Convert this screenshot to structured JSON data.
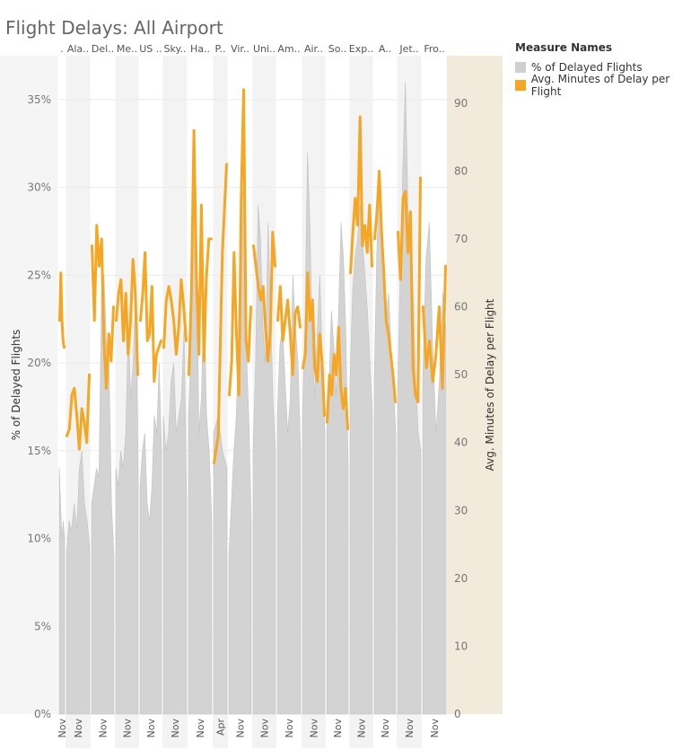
{
  "chart_data": {
    "type": "area",
    "title": "Flight Delays: All Airport",
    "airlines": [
      ".",
      "Ala..",
      "Del..",
      "Me..",
      "US ..",
      "Sky..",
      "Ha..",
      "P..",
      "Vir..",
      "Uni..",
      "Am..",
      "Air..",
      "So..",
      "Exp..",
      "A..",
      "Jet..",
      "Fro.."
    ],
    "x_tick_labels": [
      "Nov",
      "Nov",
      "Nov",
      "Nov",
      "Nov",
      "Nov",
      "Nov",
      "Apr",
      "Nov",
      "Nov",
      "Nov",
      "Nov",
      "Nov",
      "Nov",
      "Nov",
      "Nov",
      "Nov"
    ],
    "y_left": {
      "label": "% of Delayed Flights",
      "ticks": [
        "0%",
        "5%",
        "10%",
        "15%",
        "20%",
        "25%",
        "30%",
        "35%"
      ],
      "range": [
        0,
        37.5
      ]
    },
    "y_right": {
      "label": "Avg. Minutes of Delay per Flight",
      "ticks": [
        "0",
        "10",
        "20",
        "30",
        "40",
        "50",
        "60",
        "70",
        "80",
        "90"
      ],
      "range": [
        0,
        97
      ]
    },
    "legend": {
      "title": "Measure Names",
      "position": "top-right",
      "items": [
        {
          "name": "% of Delayed Flights",
          "color": "#cfcfcf"
        },
        {
          "name": "Avg. Minutes of Delay per Flight",
          "color": "#f5a623"
        }
      ]
    },
    "series": [
      {
        "name": "% of Delayed Flights",
        "color": "#d3d3d3",
        "segments": [
          [
            14,
            12,
            10,
            11,
            10
          ],
          [
            9,
            11,
            10.5,
            12,
            10.5,
            14,
            15,
            12,
            11,
            9.5
          ],
          [
            12,
            13,
            14,
            13.5,
            24,
            25,
            21,
            20,
            12,
            9
          ],
          [
            14,
            13,
            15,
            14,
            16,
            22,
            18,
            20,
            24,
            14
          ],
          [
            13,
            15,
            16,
            12,
            11,
            13,
            17,
            16,
            20,
            15
          ],
          [
            17,
            15,
            16,
            19,
            20,
            16,
            17,
            18,
            22,
            12
          ],
          [
            17,
            21,
            32,
            29,
            16,
            18,
            24,
            17,
            15,
            11
          ],
          [
            16,
            17,
            15,
            14
          ],
          [
            9,
            12,
            15,
            17,
            22,
            29,
            30,
            21,
            17,
            11
          ],
          [
            15,
            20,
            29,
            27,
            22,
            20,
            28,
            23,
            18,
            15
          ],
          [
            17,
            21,
            22,
            19,
            16,
            18,
            25,
            22,
            20,
            15
          ],
          [
            17,
            22,
            32,
            28,
            21,
            18,
            22,
            25,
            20,
            16
          ],
          [
            16,
            19,
            23,
            21,
            18,
            23,
            28,
            26,
            22,
            14
          ],
          [
            19,
            24,
            26,
            27,
            29,
            27,
            25,
            23,
            20,
            17
          ],
          [
            19,
            26,
            30,
            29,
            24,
            22,
            24,
            21,
            19,
            16
          ],
          [
            18,
            25,
            31,
            36,
            29,
            27,
            24,
            19,
            16,
            15
          ],
          [
            19,
            26,
            28,
            21,
            16,
            19,
            24,
            22
          ]
        ]
      },
      {
        "name": "Avg. Minutes of Delay per Flight",
        "color": "#f5a623",
        "segments": [
          [
            58,
            65,
            58,
            55,
            54
          ],
          [
            41,
            42,
            47,
            48,
            44,
            39,
            45,
            43,
            40,
            50
          ],
          [
            69,
            58,
            72,
            66,
            70,
            55,
            48,
            56,
            52,
            60
          ],
          [
            58,
            62,
            64,
            55,
            62,
            53,
            58,
            67,
            62,
            50
          ],
          [
            58,
            62,
            68,
            55,
            56,
            63,
            49,
            53,
            54,
            55
          ],
          [
            54,
            61,
            63,
            61,
            58,
            53,
            57,
            64,
            60,
            55
          ],
          [
            50,
            62,
            86,
            65,
            53,
            75,
            52,
            64,
            70,
            70
          ],
          [
            37,
            41,
            68,
            81
          ],
          [
            47,
            52,
            68,
            56,
            47,
            76,
            92,
            55,
            52,
            60
          ],
          [
            69,
            66,
            63,
            61,
            63,
            57,
            52,
            56,
            71,
            66
          ],
          [
            58,
            63,
            55,
            58,
            61,
            56,
            50,
            59,
            60,
            57
          ],
          [
            51,
            53,
            65,
            58,
            61,
            51,
            49,
            56,
            52,
            44
          ],
          [
            43,
            50,
            47,
            53,
            50,
            57,
            48,
            45,
            48,
            42
          ],
          [
            65,
            71,
            76,
            72,
            88,
            69,
            72,
            68,
            75,
            66
          ],
          [
            70,
            74,
            80,
            71,
            65,
            58,
            56,
            53,
            50,
            46
          ],
          [
            71,
            64,
            76,
            77,
            68,
            74,
            51,
            47,
            46,
            79
          ],
          [
            60,
            51,
            55,
            49,
            53,
            60,
            48,
            66
          ]
        ]
      }
    ]
  }
}
